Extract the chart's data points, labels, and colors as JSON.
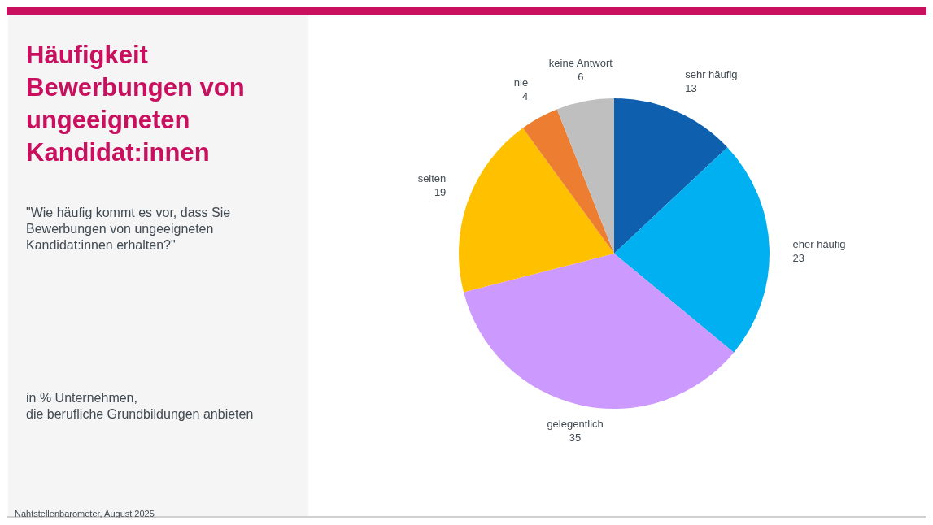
{
  "chart_data": {
    "type": "pie",
    "title": "Häufigkeit Bewerbungen von ungeeigneten Kandidat:innen",
    "subtitle": "\"Wie häufig kommt es vor, dass Sie Bewerbungen von ungeeigneten Kandidat:innen erhalten?\"",
    "annotations": [
      "in % Unternehmen,\ndie berufliche Grundbildungen anbieten",
      "Nahtstellenbarometer, August 2025"
    ],
    "categories": [
      "sehr häufig",
      "eher häufig",
      "gelegentlich",
      "selten",
      "nie",
      "keine Antwort"
    ],
    "values": [
      13,
      23,
      35,
      19,
      4,
      6
    ],
    "colors": [
      "#0e5fad",
      "#00b0f0",
      "#cc99ff",
      "#ffc000",
      "#ed7d31",
      "#bfbfbf"
    ],
    "data_labels": true
  }
}
